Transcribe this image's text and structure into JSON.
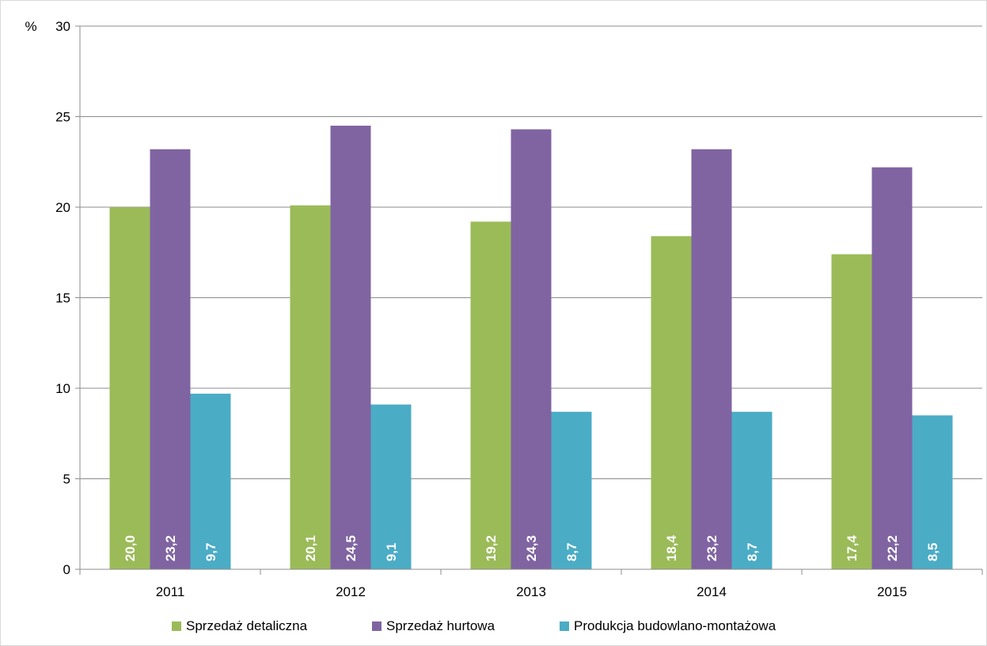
{
  "chart_data": {
    "type": "bar",
    "title": "",
    "ylabel": "%",
    "xlabel": "",
    "ylim": [
      0,
      30
    ],
    "yticks": [
      0,
      5,
      10,
      15,
      20,
      25,
      30
    ],
    "grid": true,
    "legend_position": "bottom",
    "categories": [
      "2011",
      "2012",
      "2013",
      "2014",
      "2015"
    ],
    "series": [
      {
        "name": "Sprzedaż detaliczna",
        "color": "#9bbb59",
        "values": [
          20.0,
          20.1,
          19.2,
          18.4,
          17.4
        ],
        "labels": [
          "20,0",
          "20,1",
          "19,2",
          "18,4",
          "17,4"
        ]
      },
      {
        "name": "Sprzedaż hurtowa",
        "color": "#8064a2",
        "values": [
          23.2,
          24.5,
          24.3,
          23.2,
          22.2
        ],
        "labels": [
          "23,2",
          "24,5",
          "24,3",
          "23,2",
          "22,2"
        ]
      },
      {
        "name": "Produkcja budowlano-montażowa",
        "color": "#4bacc6",
        "values": [
          9.7,
          9.1,
          8.7,
          8.7,
          8.5
        ],
        "labels": [
          "9,7",
          "9,1",
          "8,7",
          "8,7",
          "8,5"
        ]
      }
    ]
  }
}
